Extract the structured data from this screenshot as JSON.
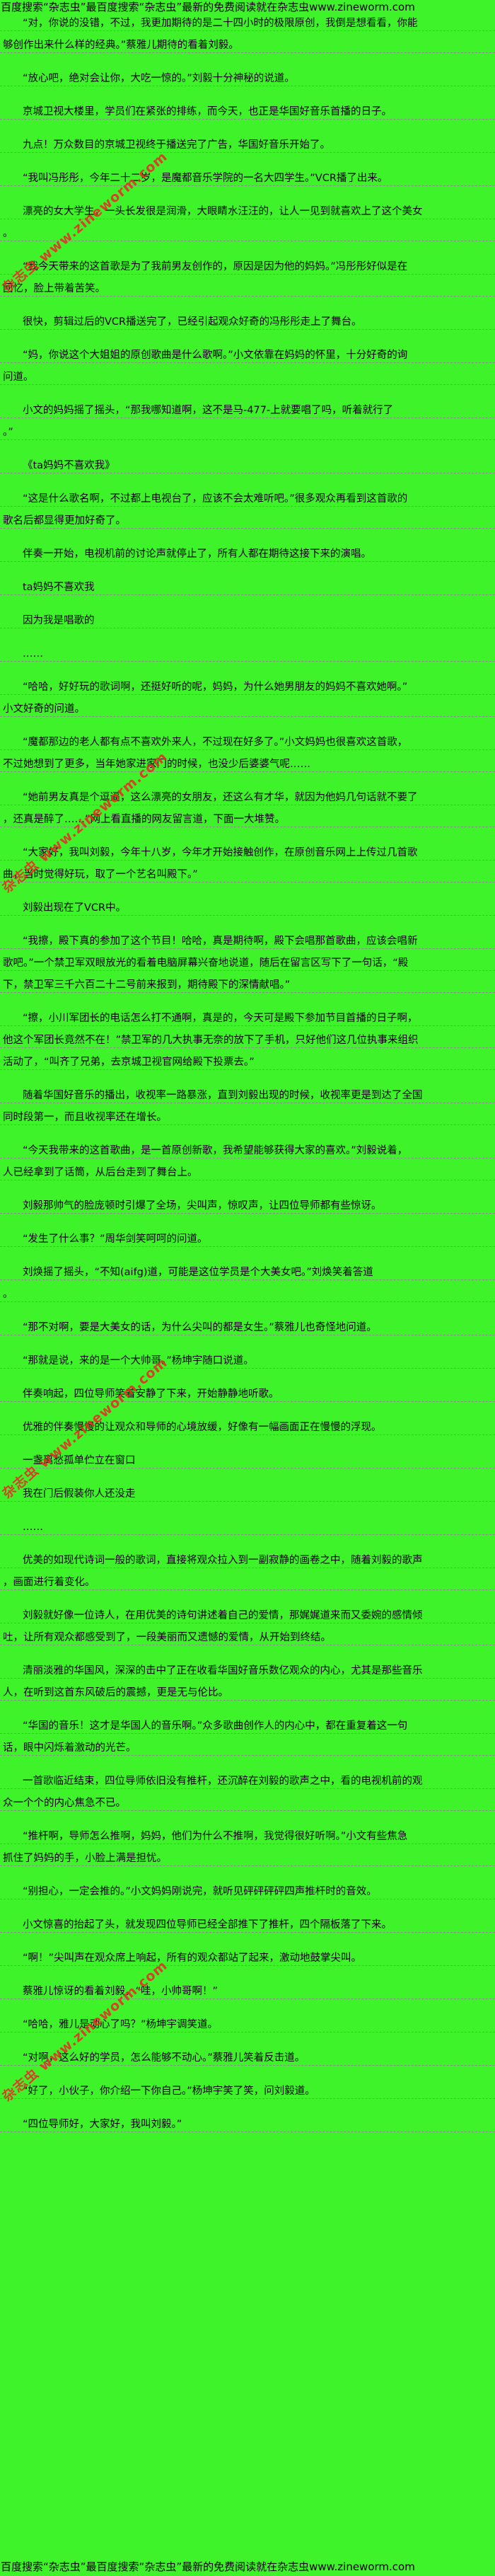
{
  "page": {
    "colors": {
      "background": "#3FF32B",
      "text": "#000000",
      "underline": "#8a8a8a",
      "watermark": "#e62e26"
    },
    "header": "百度搜索“杂志虫”最百度搜索“杂志虫”最新的免费阅读就在杂志虫www.zineworm.com",
    "footer": "百度搜索“杂志虫”最百度搜索“杂志虫”最新的免费阅读就在杂志虫www.zineworm.com",
    "watermark_text": "杂志虫 www.zineworm.com",
    "site": "www.zineworm.com"
  },
  "paragraphs": [
    [
      "“对，你说的没错，不过，我更加期待的是二十四小时的极限原创，我倒是想看看，你能",
      "够创作出来什么样的经典。”蔡雅儿期待的看着刘毅。"
    ],
    [
      "“放心吧，绝对会让你，大吃一惊的。”刘毅十分神秘的说道。"
    ],
    [
      "京城卫视大楼里，学员们在紧张的排练，而今天，也正是华国好音乐首播的日子。"
    ],
    [
      "九点！万众数目的京城卫视终于播送完了广告，华国好音乐开始了。"
    ],
    [
      "“我叫冯彤彤，今年二十二岁，是魔都音乐学院的一名大四学生。”VCR播了出来。"
    ],
    [
      "漂亮的女大学生，一头长发很是润滑，大眼睛水汪汪的，让人一见到就喜欢上了这个美女",
      "。"
    ],
    [
      "“我今天带来的这首歌是为了我前男友创作的，原因是因为他的妈妈。”冯彤彤好似是在",
      "回忆，脸上带着苦笑。"
    ],
    [
      "很快，剪辑过后的VCR播送完了，已经引起观众好奇的冯彤彤走上了舞台。"
    ],
    [
      "“妈，你说这个大姐姐的原创歌曲是什么歌啊。”小文依靠在妈妈的怀里，十分好奇的询",
      "问道。"
    ],
    [
      "小文的妈妈摇了摇头，“那我哪知道啊，这不是马-477-上就要唱了吗，听着就行了",
      "。”"
    ],
    [
      "《ta妈妈不喜欢我》"
    ],
    [
      "“这是什么歌名啊，不过都上电视台了，应该不会太难听吧。”很多观众再看到这首歌的",
      "歌名后都显得更加好奇了。"
    ],
    [
      "伴奏一开始，电视机前的讨论声就停止了，所有人都在期待这接下来的演唱。"
    ],
    [
      "ta妈妈不喜欢我"
    ],
    [
      "因为我是唱歌的"
    ],
    [
      "……"
    ],
    [
      "“哈哈，好好玩的歌词啊，还挺好听的呢，妈妈，为什么她男朋友的妈妈不喜欢她啊。”",
      "小文好奇的问道。"
    ],
    [
      "“魔都那边的老人都有点不喜欢外来人，不过现在好多了。”小文妈妈也很喜欢这首歌，",
      "不过她想到了更多，当年她家进家门的时候，也没少后婆婆气呢……"
    ],
    [
      "“她前男友真是个逗逼，这么漂亮的女朋友，还这么有才华，就因为他妈几句话就不要了",
      "，还真是醉了……”网上看直播的网友留言道，下面一大堆赞。"
    ],
    [
      "“大家好，我叫刘毅，今年十八岁，今年才开始接触创作，在原创音乐网上上传过几首歌",
      "曲，当时觉得好玩，取了一个艺名叫殿下。”"
    ],
    [
      "刘毅出现在了VCR中。"
    ],
    [
      "“我擦，殿下真的参加了这个节目！哈哈，真是期待啊，殿下会唱那首歌曲，应该会唱新",
      "歌吧。”一个禁卫军双眼放光的看着电脑屏幕兴奋地说道，随后在留言区写下了一句话，“殿",
      "下，禁卫军三千六百二十二号前来报到，期待殿下的深情献唱。”"
    ],
    [
      "“擦，小川军团长的电话怎么打不通啊，真是的，今天可是殿下参加节目首播的日子啊，",
      "他这个军团长竟然不在！”禁卫军的几大执事无奈的放下了手机，只好他们这几位执事来组织",
      "活动了，“叫齐了兄弟，去京城卫视官网给殿下投票去。”"
    ],
    [
      "随着华国好音乐的播出，收视率一路暴涨，直到刘毅出现的时候，收视率更是到达了全国",
      "同时段第一，而且收视率还在增长。"
    ],
    [
      "“今天我带来的这首歌曲，是一首原创新歌，我希望能够获得大家的喜欢。”刘毅说着，",
      "人已经拿到了话筒，从后台走到了舞台上。"
    ],
    [
      "刘毅那帅气的脸庞顿时引爆了全场，尖叫声，惊叹声，让四位导师都有些惊讶。"
    ],
    [
      "“发生了什么事？”周华剑笑呵呵的问道。"
    ],
    [
      "刘焕摇了摇头，“不知(aifg)道，可能是这位学员是个大美女吧。”刘焕笑着答道",
      "。"
    ],
    [
      "“那不对啊，要是大美女的话，为什么尖叫的都是女生。”蔡雅儿也奇怪地问道。"
    ],
    [
      "“那就是说，来的是一个大帅哥。”杨坤宇随口说道。"
    ],
    [
      "伴奏响起，四位导师笑着安静了下来，开始静静地听歌。"
    ],
    [
      "优雅的伴奏慢慢的让观众和导师的心境放缓，好像有一幅画面正在慢慢的浮现。"
    ],
    [
      "一盏离愁孤单伫立在窗口"
    ],
    [
      "我在门后假装你人还没走"
    ],
    [
      "……"
    ],
    [
      "优美的如现代诗词一般的歌词，直接将观众拉入到一副寂静的画卷之中，随着刘毅的歌声",
      "，画面进行着变化。"
    ],
    [
      "刘毅就好像一位诗人，在用优美的诗句讲述着自己的爱情，那娓娓道来而又委婉的感情倾",
      "吐，让所有观众都感受到了，一段美丽而又遗憾的爱情，从开始到终结。"
    ],
    [
      "清丽淡雅的华国风，深深的击中了正在收看华国好音乐数亿观众的内心，尤其是那些音乐",
      "人，在听到这首东风破后的震撼，更是无与伦比。"
    ],
    [
      "“华国的音乐！这才是华国人的音乐啊。”众多歌曲创作人的内心中，都在重复着这一句",
      "话，眼中闪烁着激动的光芒。"
    ],
    [
      "一首歌临近结束，四位导师依旧没有推杆，还沉醉在刘毅的歌声之中，看的电视机前的观",
      "众一个个的内心焦急不已。"
    ],
    [
      "“推杆啊，导师怎么推啊，妈妈，他们为什么不推啊，我觉得很好听啊。”小文有些焦急",
      "抓住了妈妈的手，小脸上满是担忧。"
    ],
    [
      "“别担心，一定会推的。”小文妈妈刚说完，就听见砰砰砰砰四声推杆时的音效。"
    ],
    [
      "小文惊喜的抬起了头，就发现四位导师已经全部推下了推杆，四个隔板落了下来。"
    ],
    [
      "“啊！”尖叫声在观众席上响起，所有的观众都站了起来，激动地鼓掌尖叫。"
    ],
    [
      "蔡雅儿惊讶的看着刘毅，“哇，小帅哥啊！”"
    ],
    [
      "“哈哈，雅儿是动心了吗？”杨坤宇调笑道。"
    ],
    [
      "“对啊，这么好的学员，怎么能够不动心。”蔡雅儿笑着反击道。"
    ],
    [
      "“好了，小伙子，你介绍一下你自己。”杨坤宇笑了笑，问刘毅道。"
    ],
    [
      "“四位导师好，大家好，我叫刘毅。”"
    ]
  ]
}
